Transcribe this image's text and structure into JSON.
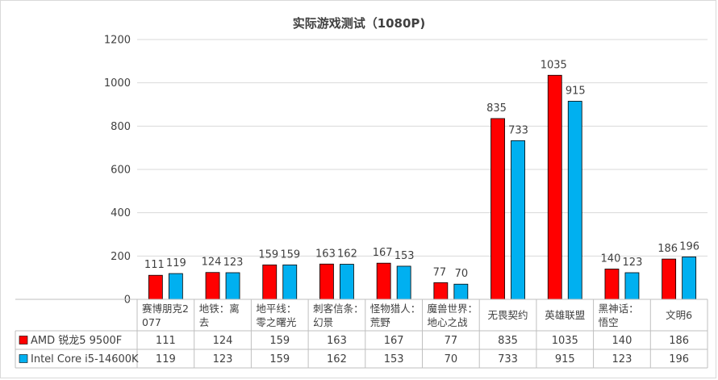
{
  "chart_data": {
    "type": "bar",
    "title": "实际游戏测试（1080P)",
    "xlabel": "",
    "ylabel": "",
    "ylim": [
      0,
      1200
    ],
    "yticks": [
      0,
      200,
      400,
      600,
      800,
      1000,
      1200
    ],
    "grid": true,
    "categories": [
      [
        "赛博朋克2",
        "077"
      ],
      [
        "地铁：离",
        "去"
      ],
      [
        "地平线：",
        "零之曙光"
      ],
      [
        "刺客信条：",
        "幻景"
      ],
      [
        "怪物猎人：",
        "荒野"
      ],
      [
        "魔兽世界：",
        "地心之战"
      ],
      [
        "无畏契约"
      ],
      [
        "英雄联盟"
      ],
      [
        "黑神话：",
        "悟空"
      ],
      [
        "文明6"
      ]
    ],
    "series": [
      {
        "name": "AMD 锐龙5 9500F",
        "color": "#ff0000",
        "values": [
          111,
          124,
          159,
          163,
          167,
          77,
          835,
          1035,
          140,
          186
        ]
      },
      {
        "name": "Intel Core i5-14600K",
        "color": "#00b0f0",
        "values": [
          119,
          123,
          159,
          162,
          153,
          70,
          733,
          915,
          123,
          196
        ]
      }
    ],
    "legend": "data-table"
  }
}
